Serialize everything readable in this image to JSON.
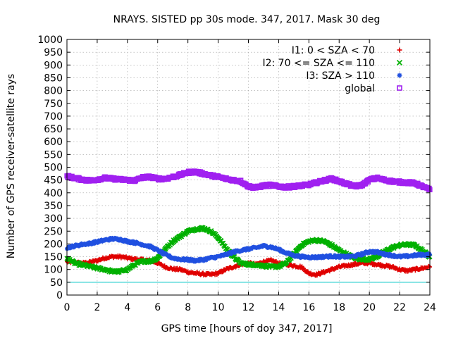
{
  "chart_data": {
    "type": "scatter",
    "title": "NRAYS. SISTED pp 30s mode. 347, 2017. Mask 30 deg",
    "xlabel": "GPS time [hours of doy 347, 2017]",
    "ylabel": "Number of GPS receiver-satellite rays",
    "xlim": [
      0,
      24
    ],
    "ylim": [
      0,
      1000
    ],
    "xticks": [
      0,
      2,
      4,
      6,
      8,
      10,
      12,
      14,
      16,
      18,
      20,
      22,
      24
    ],
    "yticks": [
      0,
      50,
      100,
      150,
      200,
      250,
      300,
      350,
      400,
      450,
      500,
      550,
      600,
      650,
      700,
      750,
      800,
      850,
      900,
      950,
      1000
    ],
    "grid": true,
    "legend_position": "top-right",
    "reference_line": {
      "y": 50,
      "color": "#00c8c8"
    },
    "series": [
      {
        "name": "I1: 0 < SZA < 70",
        "marker": "+",
        "color": "#e00000",
        "x": [
          0,
          0.5,
          1,
          1.5,
          2,
          2.5,
          3,
          3.5,
          4,
          4.5,
          5,
          5.5,
          6,
          6.5,
          7,
          7.5,
          8,
          8.5,
          9,
          9.5,
          10,
          10.5,
          11,
          11.5,
          12,
          12.5,
          13,
          13.5,
          14,
          14.5,
          15,
          15.5,
          16,
          16.5,
          17,
          17.5,
          18,
          18.5,
          19,
          19.5,
          20,
          20.5,
          21,
          21.5,
          22,
          22.5,
          23,
          23.5,
          24
        ],
        "y": [
          130,
          128,
          125,
          128,
          135,
          145,
          150,
          150,
          145,
          140,
          138,
          135,
          125,
          110,
          102,
          100,
          90,
          85,
          82,
          80,
          85,
          100,
          110,
          120,
          125,
          120,
          130,
          135,
          125,
          120,
          115,
          110,
          85,
          80,
          90,
          100,
          110,
          115,
          120,
          125,
          125,
          120,
          115,
          110,
          100,
          95,
          100,
          105,
          110
        ]
      },
      {
        "name": "I2: 70 <= SZA <= 110",
        "marker": "x",
        "color": "#00b000",
        "x": [
          0,
          0.5,
          1,
          1.5,
          2,
          2.5,
          3,
          3.5,
          4,
          4.5,
          5,
          5.5,
          6,
          6.5,
          7,
          7.5,
          8,
          8.5,
          9,
          9.5,
          10,
          10.5,
          11,
          11.5,
          12,
          12.5,
          13,
          13.5,
          14,
          14.5,
          15,
          15.5,
          16,
          16.5,
          17,
          17.5,
          18,
          18.5,
          19,
          19.5,
          20,
          20.5,
          21,
          21.5,
          22,
          22.5,
          23,
          23.5,
          24
        ],
        "y": [
          145,
          125,
          118,
          112,
          105,
          100,
          92,
          92,
          100,
          120,
          132,
          132,
          145,
          180,
          210,
          230,
          250,
          258,
          262,
          250,
          225,
          185,
          150,
          125,
          120,
          118,
          115,
          110,
          112,
          125,
          160,
          195,
          210,
          215,
          210,
          195,
          175,
          160,
          145,
          140,
          140,
          150,
          170,
          185,
          195,
          198,
          195,
          175,
          150
        ]
      },
      {
        "name": "I3: SZA > 110",
        "marker": "*",
        "color": "#2050e0",
        "x": [
          0,
          0.5,
          1,
          1.5,
          2,
          2.5,
          3,
          3.5,
          4,
          4.5,
          5,
          5.5,
          6,
          6.5,
          7,
          7.5,
          8,
          8.5,
          9,
          9.5,
          10,
          10.5,
          11,
          11.5,
          12,
          12.5,
          13,
          13.5,
          14,
          14.5,
          15,
          15.5,
          16,
          16.5,
          17,
          17.5,
          18,
          18.5,
          19,
          19.5,
          20,
          20.5,
          21,
          21.5,
          22,
          22.5,
          23,
          23.5,
          24
        ],
        "y": [
          185,
          192,
          198,
          202,
          208,
          215,
          220,
          218,
          210,
          205,
          198,
          190,
          175,
          158,
          145,
          140,
          138,
          135,
          138,
          145,
          150,
          158,
          168,
          175,
          180,
          185,
          192,
          188,
          178,
          165,
          155,
          150,
          148,
          148,
          150,
          152,
          150,
          150,
          152,
          160,
          170,
          168,
          160,
          155,
          150,
          152,
          155,
          158,
          158
        ]
      },
      {
        "name": "global",
        "marker": "square",
        "color": "#a020f0",
        "x": [
          0,
          0.5,
          1,
          1.5,
          2,
          2.5,
          3,
          3.5,
          4,
          4.5,
          5,
          5.5,
          6,
          6.5,
          7,
          7.5,
          8,
          8.5,
          9,
          9.5,
          10,
          10.5,
          11,
          11.5,
          12,
          12.5,
          13,
          13.5,
          14,
          14.5,
          15,
          15.5,
          16,
          16.5,
          17,
          17.5,
          18,
          18.5,
          19,
          19.5,
          20,
          20.5,
          21,
          21.5,
          22,
          22.5,
          23,
          23.5,
          24
        ],
        "y": [
          465,
          458,
          452,
          448,
          452,
          458,
          455,
          452,
          450,
          448,
          460,
          462,
          455,
          455,
          462,
          470,
          480,
          482,
          475,
          468,
          462,
          455,
          450,
          445,
          425,
          420,
          428,
          430,
          425,
          422,
          425,
          428,
          432,
          440,
          448,
          455,
          445,
          435,
          425,
          430,
          450,
          458,
          450,
          445,
          442,
          440,
          438,
          425,
          412
        ]
      }
    ]
  }
}
